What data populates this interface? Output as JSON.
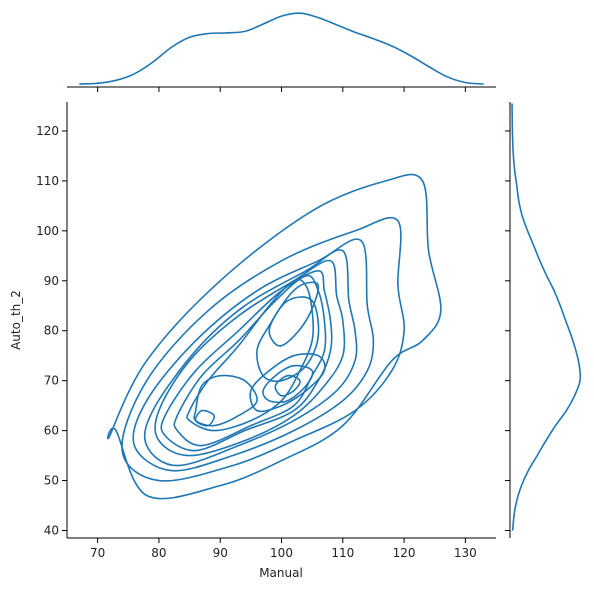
{
  "chart_data": {
    "type": "kde-jointplot",
    "color": "#1f77b4",
    "xlabel": "Manual",
    "ylabel": "Auto_th_2",
    "xlim": [
      65,
      135
    ],
    "ylim": [
      38.5,
      125.8
    ],
    "x_ticks": [
      70,
      80,
      90,
      100,
      110,
      120,
      130
    ],
    "y_ticks": [
      40,
      50,
      60,
      70,
      80,
      90,
      100,
      110,
      120
    ],
    "marginal_x": {
      "x": [
        67,
        70,
        73,
        76,
        79,
        82,
        85,
        88,
        91,
        94,
        97,
        100,
        103,
        106,
        109,
        112,
        115,
        118,
        121,
        124,
        127,
        130,
        133
      ],
      "density": [
        0.0,
        0.01,
        0.05,
        0.14,
        0.3,
        0.5,
        0.64,
        0.69,
        0.7,
        0.72,
        0.82,
        0.93,
        0.97,
        0.91,
        0.81,
        0.71,
        0.62,
        0.52,
        0.39,
        0.24,
        0.1,
        0.02,
        0.0
      ]
    },
    "marginal_y": {
      "y": [
        40,
        43,
        46,
        49,
        52,
        55,
        58,
        61,
        64,
        67,
        70,
        73,
        76,
        79,
        82,
        85,
        88,
        91,
        94,
        97,
        100,
        103,
        106,
        109,
        112,
        115,
        118,
        121,
        124,
        125.5
      ],
      "density": [
        0.01,
        0.03,
        0.07,
        0.14,
        0.24,
        0.37,
        0.5,
        0.64,
        0.8,
        0.92,
        1.0,
        0.99,
        0.94,
        0.87,
        0.79,
        0.71,
        0.62,
        0.51,
        0.41,
        0.32,
        0.23,
        0.15,
        0.1,
        0.07,
        0.04,
        0.02,
        0.01,
        0.005,
        0.002,
        0.0
      ]
    },
    "levels": [
      {
        "points": [
          [
            73,
            60
          ],
          [
            78,
            47
          ],
          [
            90,
            49
          ],
          [
            100,
            54
          ],
          [
            110,
            61
          ],
          [
            118,
            74
          ],
          [
            123,
            78
          ],
          [
            126,
            84
          ],
          [
            124,
            96
          ],
          [
            123,
            110
          ],
          [
            117,
            110
          ],
          [
            105,
            104
          ],
          [
            90,
            90
          ],
          [
            78,
            74
          ],
          [
            72,
            59
          ]
        ]
      },
      {
        "points": [
          [
            74,
            56
          ],
          [
            80,
            50
          ],
          [
            92,
            53
          ],
          [
            102,
            58
          ],
          [
            112,
            64
          ],
          [
            118,
            72
          ],
          [
            120,
            80
          ],
          [
            119,
            89
          ],
          [
            119,
            102
          ],
          [
            112,
            100
          ],
          [
            100,
            94
          ],
          [
            88,
            84
          ],
          [
            78,
            70
          ]
        ]
      },
      {
        "points": [
          [
            76,
            57
          ],
          [
            82,
            52
          ],
          [
            92,
            55
          ],
          [
            102,
            60
          ],
          [
            110,
            66
          ],
          [
            114,
            72
          ],
          [
            115,
            78
          ],
          [
            114,
            85
          ],
          [
            113,
            98
          ],
          [
            106,
            94
          ],
          [
            96,
            88
          ],
          [
            86,
            78
          ],
          [
            78,
            66
          ]
        ]
      },
      {
        "points": [
          [
            78,
            57
          ],
          [
            83,
            53
          ],
          [
            93,
            57
          ],
          [
            102,
            62
          ],
          [
            109,
            68
          ],
          [
            112,
            74
          ],
          [
            112,
            80
          ],
          [
            111,
            86
          ],
          [
            110,
            96
          ],
          [
            104,
            92
          ],
          [
            94,
            85
          ],
          [
            86,
            76
          ],
          [
            79,
            64
          ]
        ]
      },
      {
        "points": [
          [
            80,
            58
          ],
          [
            85,
            55
          ],
          [
            94,
            58
          ],
          [
            102,
            63
          ],
          [
            107,
            69
          ],
          [
            110,
            75
          ],
          [
            110,
            82
          ],
          [
            109,
            87
          ],
          [
            108,
            94
          ],
          [
            102,
            90
          ],
          [
            93,
            83
          ],
          [
            85,
            74
          ],
          [
            80,
            64
          ]
        ]
      },
      {
        "points": [
          [
            81,
            59
          ],
          [
            86,
            56
          ],
          [
            94,
            60
          ],
          [
            102,
            64
          ],
          [
            106,
            70
          ],
          [
            108,
            76
          ],
          [
            108,
            82
          ],
          [
            107,
            88
          ],
          [
            106,
            92
          ],
          [
            100,
            88
          ],
          [
            93,
            80
          ],
          [
            86,
            72
          ],
          [
            81,
            63
          ]
        ]
      },
      {
        "points": [
          [
            83,
            60
          ],
          [
            87,
            57
          ],
          [
            95,
            61
          ],
          [
            102,
            65
          ],
          [
            105,
            71
          ],
          [
            107,
            76
          ],
          [
            107,
            82
          ],
          [
            106,
            88
          ],
          [
            104,
            91
          ],
          [
            99,
            86
          ],
          [
            93,
            78
          ],
          [
            87,
            71
          ],
          [
            83,
            63
          ]
        ]
      },
      {
        "points": [
          [
            85,
            62
          ],
          [
            89,
            60
          ],
          [
            95,
            62
          ],
          [
            100,
            66
          ],
          [
            103,
            72
          ],
          [
            105,
            78
          ],
          [
            105,
            84
          ],
          [
            104,
            89
          ],
          [
            102,
            90
          ],
          [
            98,
            85
          ],
          [
            93,
            77
          ],
          [
            88,
            70
          ],
          [
            85,
            64
          ]
        ]
      },
      {
        "points": [
          [
            86,
            62
          ],
          [
            89,
            61
          ],
          [
            93,
            63
          ],
          [
            96,
            66
          ],
          [
            94,
            70
          ],
          [
            90,
            71
          ],
          [
            87,
            69
          ],
          [
            86,
            64
          ]
        ]
      },
      {
        "points": [
          [
            97,
            71
          ],
          [
            100,
            70
          ],
          [
            104,
            73
          ],
          [
            106,
            79
          ],
          [
            105,
            86
          ],
          [
            101,
            86
          ],
          [
            98,
            81
          ],
          [
            96,
            76
          ]
        ]
      },
      {
        "points": [
          [
            100,
            77
          ],
          [
            104,
            82
          ],
          [
            106,
            89
          ],
          [
            103,
            89
          ],
          [
            100,
            85
          ],
          [
            98,
            80
          ]
        ]
      },
      {
        "points": [
          [
            96,
            64
          ],
          [
            100,
            65
          ],
          [
            104,
            68
          ],
          [
            107,
            72
          ],
          [
            106,
            75
          ],
          [
            102,
            75
          ],
          [
            98,
            72
          ],
          [
            95,
            68
          ]
        ]
      },
      {
        "points": [
          [
            98,
            66
          ],
          [
            101,
            66
          ],
          [
            104,
            69
          ],
          [
            105,
            72
          ],
          [
            102,
            73
          ],
          [
            99,
            71
          ],
          [
            97,
            68
          ]
        ]
      },
      {
        "points": [
          [
            100,
            67
          ],
          [
            102,
            68
          ],
          [
            103,
            70
          ],
          [
            101,
            71
          ],
          [
            99,
            69
          ]
        ]
      },
      {
        "points": [
          [
            86,
            62
          ],
          [
            88,
            61
          ],
          [
            89,
            63
          ],
          [
            87,
            64
          ]
        ]
      }
    ]
  }
}
